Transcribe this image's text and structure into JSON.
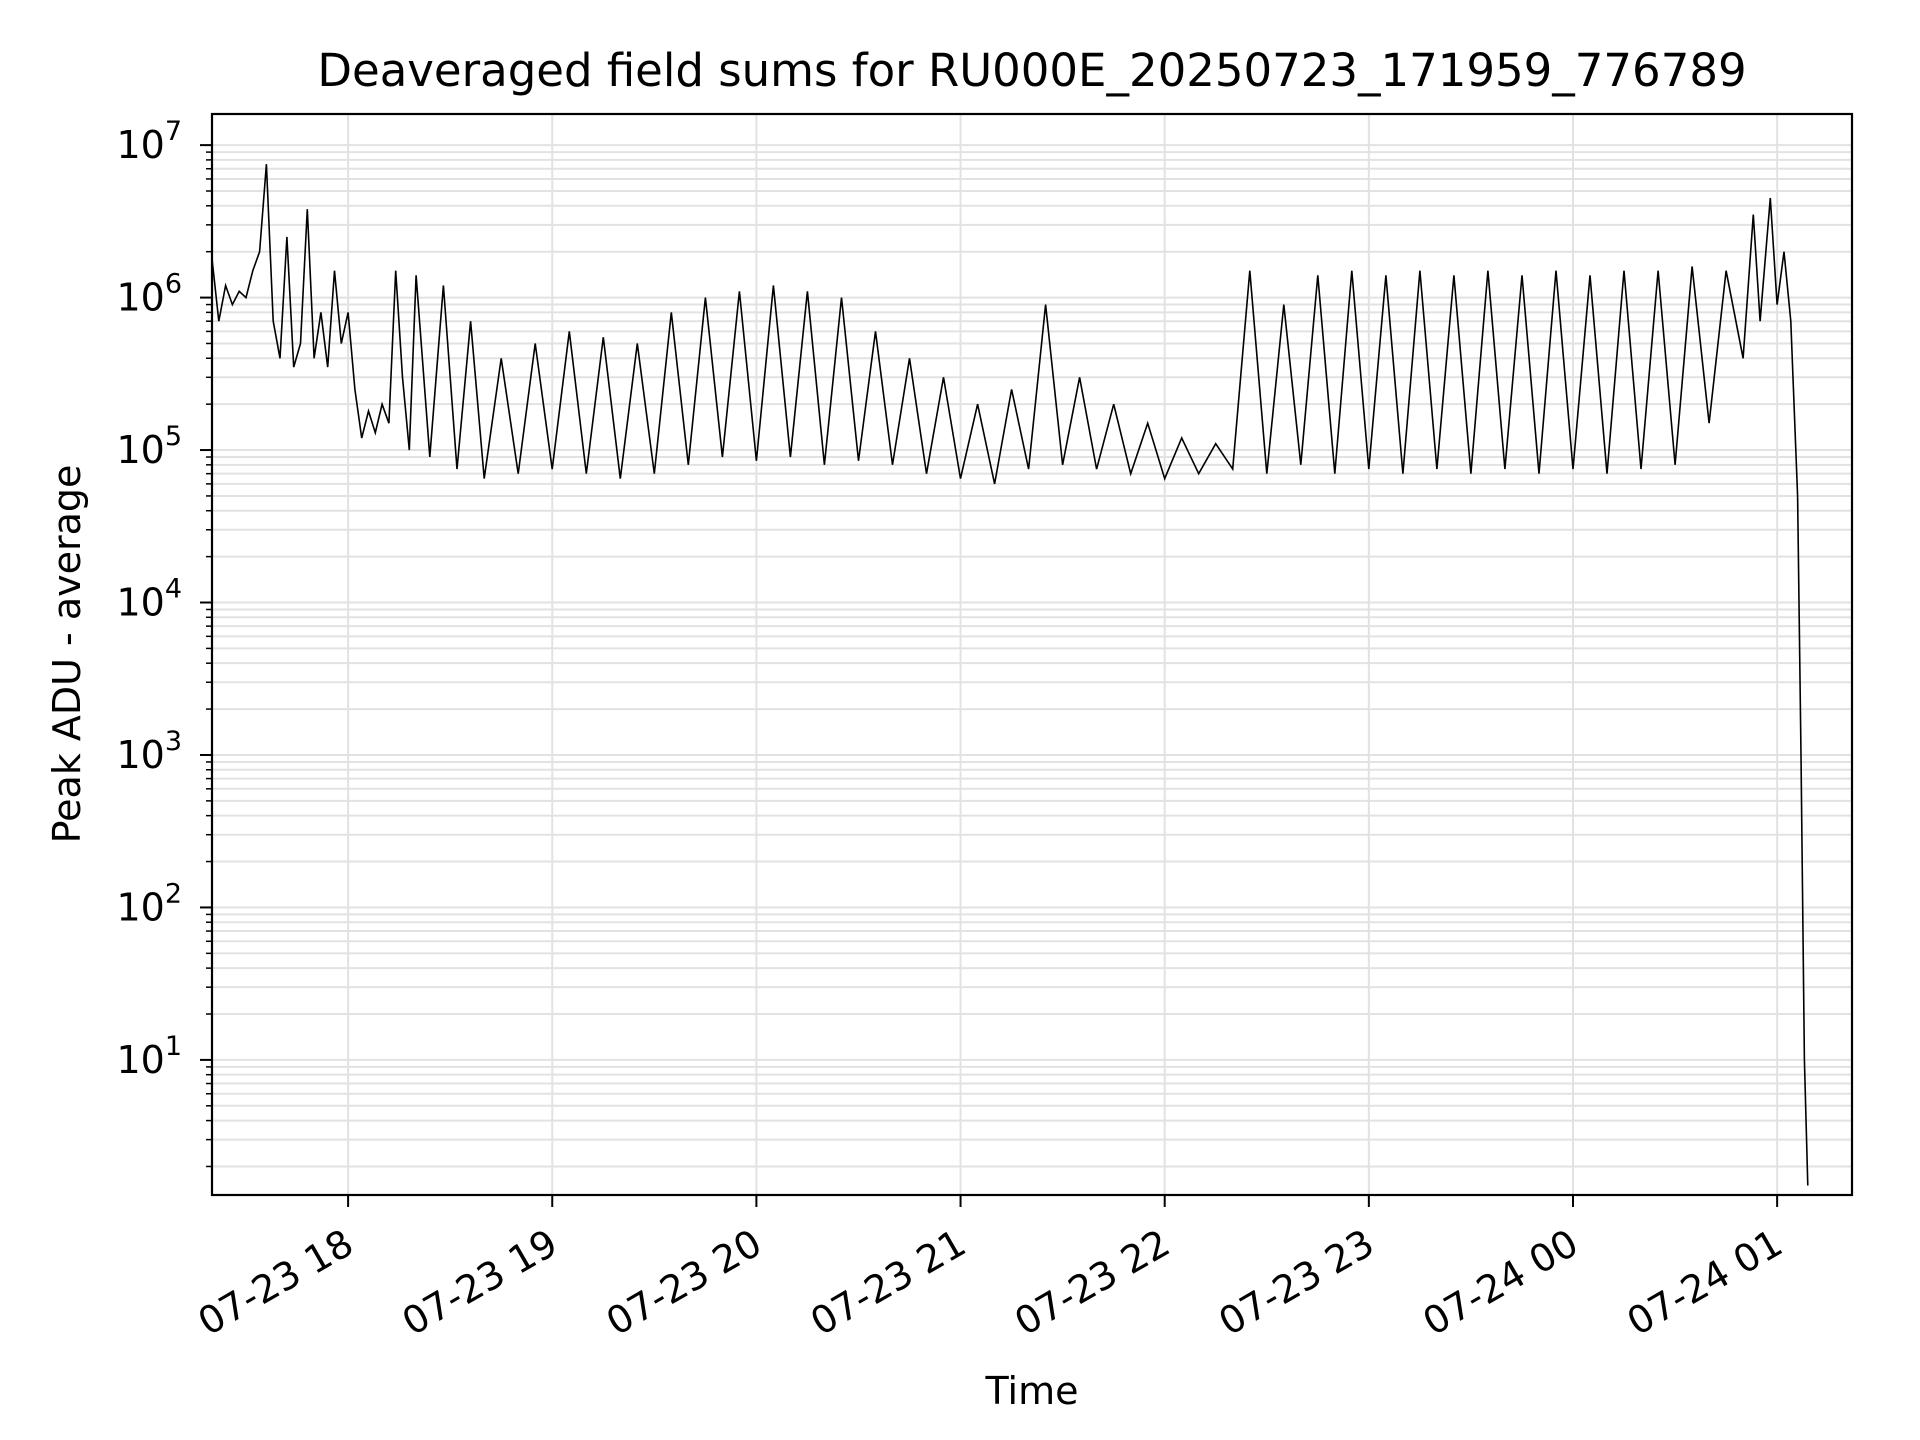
{
  "chart_data": {
    "type": "line",
    "title": "Deaveraged field sums for RU000E_20250723_171959_776789",
    "xlabel": "Time",
    "ylabel": "Peak ADU - average",
    "yscale": "log",
    "xlim": [
      "2025-07-23 17:20",
      "2025-07-24 01:22"
    ],
    "ylim": [
      1.3,
      16000000
    ],
    "grid": true,
    "line_color": "#000000",
    "grid_color": "#e2e2e2",
    "x_ticks": [
      {
        "t": "2025-07-23 18:00",
        "label": "07-23 18"
      },
      {
        "t": "2025-07-23 19:00",
        "label": "07-23 19"
      },
      {
        "t": "2025-07-23 20:00",
        "label": "07-23 20"
      },
      {
        "t": "2025-07-23 21:00",
        "label": "07-23 21"
      },
      {
        "t": "2025-07-23 22:00",
        "label": "07-23 22"
      },
      {
        "t": "2025-07-23 23:00",
        "label": "07-23 23"
      },
      {
        "t": "2025-07-24 00:00",
        "label": "07-24 00"
      },
      {
        "t": "2025-07-24 01:00",
        "label": "07-24 01"
      }
    ],
    "y_ticks": [
      {
        "value": 10,
        "base": "10",
        "exp": "1"
      },
      {
        "value": 100,
        "base": "10",
        "exp": "2"
      },
      {
        "value": 1000,
        "base": "10",
        "exp": "3"
      },
      {
        "value": 10000,
        "base": "10",
        "exp": "4"
      },
      {
        "value": 100000,
        "base": "10",
        "exp": "5"
      },
      {
        "value": 1000000,
        "base": "10",
        "exp": "6"
      },
      {
        "value": 10000000,
        "base": "10",
        "exp": "7"
      }
    ],
    "series": [
      {
        "points": [
          [
            "2025-07-23 17:20",
            1800000
          ],
          [
            "2025-07-23 17:22",
            700000
          ],
          [
            "2025-07-23 17:24",
            1200000
          ],
          [
            "2025-07-23 17:26",
            900000
          ],
          [
            "2025-07-23 17:28",
            1100000
          ],
          [
            "2025-07-23 17:30",
            1000000
          ],
          [
            "2025-07-23 17:32",
            1500000
          ],
          [
            "2025-07-23 17:34",
            2000000
          ],
          [
            "2025-07-23 17:36",
            7500000
          ],
          [
            "2025-07-23 17:38",
            700000
          ],
          [
            "2025-07-23 17:40",
            400000
          ],
          [
            "2025-07-23 17:42",
            2500000
          ],
          [
            "2025-07-23 17:44",
            350000
          ],
          [
            "2025-07-23 17:46",
            500000
          ],
          [
            "2025-07-23 17:48",
            3800000
          ],
          [
            "2025-07-23 17:50",
            400000
          ],
          [
            "2025-07-23 17:52",
            800000
          ],
          [
            "2025-07-23 17:54",
            350000
          ],
          [
            "2025-07-23 17:56",
            1500000
          ],
          [
            "2025-07-23 17:58",
            500000
          ],
          [
            "2025-07-23 18:00",
            800000
          ],
          [
            "2025-07-23 18:02",
            250000
          ],
          [
            "2025-07-23 18:04",
            120000
          ],
          [
            "2025-07-23 18:06",
            180000
          ],
          [
            "2025-07-23 18:08",
            130000
          ],
          [
            "2025-07-23 18:10",
            200000
          ],
          [
            "2025-07-23 18:12",
            150000
          ],
          [
            "2025-07-23 18:14",
            1500000
          ],
          [
            "2025-07-23 18:16",
            300000
          ],
          [
            "2025-07-23 18:18",
            100000
          ],
          [
            "2025-07-23 18:20",
            1400000
          ],
          [
            "2025-07-23 18:24",
            90000
          ],
          [
            "2025-07-23 18:28",
            1200000
          ],
          [
            "2025-07-23 18:32",
            75000
          ],
          [
            "2025-07-23 18:36",
            700000
          ],
          [
            "2025-07-23 18:40",
            65000
          ],
          [
            "2025-07-23 18:45",
            400000
          ],
          [
            "2025-07-23 18:50",
            70000
          ],
          [
            "2025-07-23 18:55",
            500000
          ],
          [
            "2025-07-23 19:00",
            75000
          ],
          [
            "2025-07-23 19:05",
            600000
          ],
          [
            "2025-07-23 19:10",
            70000
          ],
          [
            "2025-07-23 19:15",
            550000
          ],
          [
            "2025-07-23 19:20",
            65000
          ],
          [
            "2025-07-23 19:25",
            500000
          ],
          [
            "2025-07-23 19:30",
            70000
          ],
          [
            "2025-07-23 19:35",
            800000
          ],
          [
            "2025-07-23 19:40",
            80000
          ],
          [
            "2025-07-23 19:45",
            1000000
          ],
          [
            "2025-07-23 19:50",
            90000
          ],
          [
            "2025-07-23 19:55",
            1100000
          ],
          [
            "2025-07-23 20:00",
            85000
          ],
          [
            "2025-07-23 20:05",
            1200000
          ],
          [
            "2025-07-23 20:10",
            90000
          ],
          [
            "2025-07-23 20:15",
            1100000
          ],
          [
            "2025-07-23 20:20",
            80000
          ],
          [
            "2025-07-23 20:25",
            1000000
          ],
          [
            "2025-07-23 20:30",
            85000
          ],
          [
            "2025-07-23 20:35",
            600000
          ],
          [
            "2025-07-23 20:40",
            80000
          ],
          [
            "2025-07-23 20:45",
            400000
          ],
          [
            "2025-07-23 20:50",
            70000
          ],
          [
            "2025-07-23 20:55",
            300000
          ],
          [
            "2025-07-23 21:00",
            65000
          ],
          [
            "2025-07-23 21:05",
            200000
          ],
          [
            "2025-07-23 21:10",
            60000
          ],
          [
            "2025-07-23 21:15",
            250000
          ],
          [
            "2025-07-23 21:20",
            75000
          ],
          [
            "2025-07-23 21:25",
            900000
          ],
          [
            "2025-07-23 21:30",
            80000
          ],
          [
            "2025-07-23 21:35",
            300000
          ],
          [
            "2025-07-23 21:40",
            75000
          ],
          [
            "2025-07-23 21:45",
            200000
          ],
          [
            "2025-07-23 21:50",
            70000
          ],
          [
            "2025-07-23 21:55",
            150000
          ],
          [
            "2025-07-23 22:00",
            65000
          ],
          [
            "2025-07-23 22:05",
            120000
          ],
          [
            "2025-07-23 22:10",
            70000
          ],
          [
            "2025-07-23 22:15",
            110000
          ],
          [
            "2025-07-23 22:20",
            75000
          ],
          [
            "2025-07-23 22:25",
            1500000
          ],
          [
            "2025-07-23 22:30",
            70000
          ],
          [
            "2025-07-23 22:35",
            900000
          ],
          [
            "2025-07-23 22:40",
            80000
          ],
          [
            "2025-07-23 22:45",
            1400000
          ],
          [
            "2025-07-23 22:50",
            70000
          ],
          [
            "2025-07-23 22:55",
            1500000
          ],
          [
            "2025-07-23 23:00",
            75000
          ],
          [
            "2025-07-23 23:05",
            1400000
          ],
          [
            "2025-07-23 23:10",
            70000
          ],
          [
            "2025-07-23 23:15",
            1500000
          ],
          [
            "2025-07-23 23:20",
            75000
          ],
          [
            "2025-07-23 23:25",
            1400000
          ],
          [
            "2025-07-23 23:30",
            70000
          ],
          [
            "2025-07-23 23:35",
            1500000
          ],
          [
            "2025-07-23 23:40",
            75000
          ],
          [
            "2025-07-23 23:45",
            1400000
          ],
          [
            "2025-07-23 23:50",
            70000
          ],
          [
            "2025-07-23 23:55",
            1500000
          ],
          [
            "2025-07-24 00:00",
            75000
          ],
          [
            "2025-07-24 00:05",
            1400000
          ],
          [
            "2025-07-24 00:10",
            70000
          ],
          [
            "2025-07-24 00:15",
            1500000
          ],
          [
            "2025-07-24 00:20",
            75000
          ],
          [
            "2025-07-24 00:25",
            1500000
          ],
          [
            "2025-07-24 00:30",
            80000
          ],
          [
            "2025-07-24 00:35",
            1600000
          ],
          [
            "2025-07-24 00:40",
            150000
          ],
          [
            "2025-07-24 00:45",
            1500000
          ],
          [
            "2025-07-24 00:50",
            400000
          ],
          [
            "2025-07-24 00:53",
            3500000
          ],
          [
            "2025-07-24 00:55",
            700000
          ],
          [
            "2025-07-24 00:58",
            4500000
          ],
          [
            "2025-07-24 01:00",
            900000
          ],
          [
            "2025-07-24 01:02",
            2000000
          ],
          [
            "2025-07-24 01:04",
            700000
          ],
          [
            "2025-07-24 01:06",
            50000
          ],
          [
            "2025-07-24 01:07",
            1000
          ],
          [
            "2025-07-24 01:08",
            10
          ],
          [
            "2025-07-24 01:09",
            1.5
          ]
        ]
      }
    ]
  }
}
